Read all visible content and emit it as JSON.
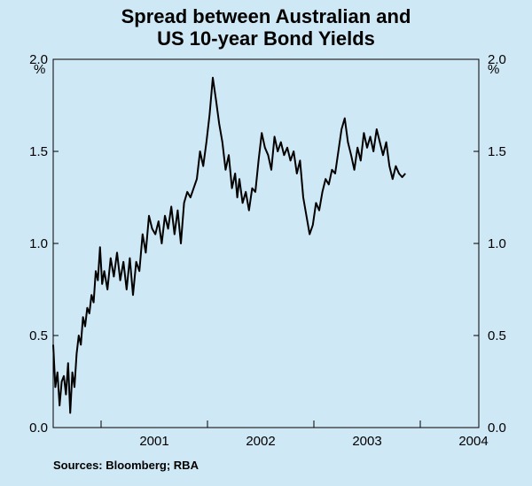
{
  "chart_data": {
    "type": "line",
    "title": [
      "Spread between Australian and",
      "US 10-year Bond Yields"
    ],
    "ylabel_left": "%",
    "ylabel_right": "%",
    "ylim": [
      0,
      2.0
    ],
    "yticks": [
      0.0,
      0.5,
      1.0,
      1.5,
      2.0
    ],
    "ytick_labels": [
      "0.0",
      "0.5",
      "1.0",
      "1.5",
      "2.0"
    ],
    "xlim": [
      2000.55,
      2004.55
    ],
    "xtick_labels": [
      "2001",
      "2002",
      "2003",
      "2004"
    ],
    "grid": false,
    "series": [
      {
        "color": "#000000",
        "x": [
          2000.55,
          2000.57,
          2000.59,
          2000.61,
          2000.63,
          2000.65,
          2000.67,
          2000.69,
          2000.71,
          2000.73,
          2000.75,
          2000.77,
          2000.79,
          2000.81,
          2000.83,
          2000.85,
          2000.87,
          2000.89,
          2000.91,
          2000.93,
          2000.95,
          2000.97,
          2000.99,
          2001.01,
          2001.03,
          2001.06,
          2001.09,
          2001.12,
          2001.15,
          2001.18,
          2001.21,
          2001.24,
          2001.27,
          2001.3,
          2001.33,
          2001.36,
          2001.39,
          2001.42,
          2001.45,
          2001.48,
          2001.51,
          2001.54,
          2001.57,
          2001.6,
          2001.63,
          2001.66,
          2001.69,
          2001.72,
          2001.75,
          2001.78,
          2001.81,
          2001.84,
          2001.87,
          2001.9,
          2001.93,
          2001.96,
          2001.99,
          2002.02,
          2002.05,
          2002.08,
          2002.11,
          2002.14,
          2002.17,
          2002.2,
          2002.23,
          2002.26,
          2002.28,
          2002.3,
          2002.33,
          2002.36,
          2002.39,
          2002.42,
          2002.45,
          2002.48,
          2002.51,
          2002.54,
          2002.57,
          2002.6,
          2002.63,
          2002.66,
          2002.69,
          2002.72,
          2002.75,
          2002.78,
          2002.81,
          2002.84,
          2002.87,
          2002.9,
          2002.93,
          2002.96,
          2002.99,
          2003.02,
          2003.05,
          2003.08,
          2003.11,
          2003.14,
          2003.17,
          2003.2,
          2003.23,
          2003.26,
          2003.29,
          2003.32,
          2003.35,
          2003.38,
          2003.41,
          2003.44,
          2003.47,
          2003.5,
          2003.53,
          2003.56,
          2003.59,
          2003.62,
          2003.65,
          2003.68,
          2003.71,
          2003.74,
          2003.77,
          2003.8,
          2003.83,
          2003.86
        ],
        "y": [
          0.45,
          0.22,
          0.3,
          0.12,
          0.25,
          0.28,
          0.18,
          0.35,
          0.08,
          0.3,
          0.22,
          0.4,
          0.5,
          0.45,
          0.6,
          0.55,
          0.65,
          0.62,
          0.72,
          0.68,
          0.85,
          0.8,
          0.98,
          0.78,
          0.85,
          0.75,
          0.92,
          0.82,
          0.95,
          0.8,
          0.9,
          0.75,
          0.92,
          0.72,
          0.9,
          0.85,
          1.05,
          0.95,
          1.15,
          1.08,
          1.05,
          1.12,
          1.0,
          1.15,
          1.08,
          1.2,
          1.05,
          1.18,
          1.0,
          1.22,
          1.28,
          1.25,
          1.3,
          1.35,
          1.5,
          1.42,
          1.55,
          1.7,
          1.9,
          1.78,
          1.65,
          1.55,
          1.4,
          1.48,
          1.3,
          1.38,
          1.25,
          1.35,
          1.22,
          1.28,
          1.18,
          1.3,
          1.28,
          1.45,
          1.6,
          1.52,
          1.48,
          1.4,
          1.58,
          1.5,
          1.55,
          1.48,
          1.52,
          1.45,
          1.5,
          1.38,
          1.45,
          1.25,
          1.15,
          1.05,
          1.1,
          1.22,
          1.18,
          1.28,
          1.35,
          1.32,
          1.4,
          1.38,
          1.5,
          1.62,
          1.68,
          1.55,
          1.48,
          1.4,
          1.52,
          1.45,
          1.6,
          1.52,
          1.58,
          1.5,
          1.62,
          1.55,
          1.48,
          1.55,
          1.42,
          1.35,
          1.42,
          1.38,
          1.36,
          1.38
        ]
      }
    ],
    "source": "Sources: Bloomberg; RBA"
  }
}
